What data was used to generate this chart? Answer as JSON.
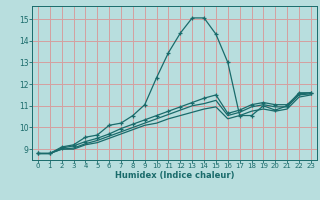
{
  "xlabel": "Humidex (Indice chaleur)",
  "xlim": [
    -0.5,
    23.5
  ],
  "ylim": [
    8.5,
    15.6
  ],
  "xticks": [
    0,
    1,
    2,
    3,
    4,
    5,
    6,
    7,
    8,
    9,
    10,
    11,
    12,
    13,
    14,
    15,
    16,
    17,
    18,
    19,
    20,
    21,
    22,
    23
  ],
  "yticks": [
    9,
    10,
    11,
    12,
    13,
    14,
    15
  ],
  "background_color": "#b8dede",
  "grid_color": "#d4a0a0",
  "line_color": "#1a6b6b",
  "line1_x": [
    0,
    1,
    2,
    3,
    4,
    5,
    6,
    7,
    8,
    9,
    10,
    11,
    12,
    13,
    14,
    15,
    16,
    17,
    18,
    19,
    20,
    21,
    22,
    23
  ],
  "line1_y": [
    8.8,
    8.8,
    9.1,
    9.2,
    9.55,
    9.65,
    10.1,
    10.2,
    10.55,
    11.05,
    12.3,
    13.45,
    14.35,
    15.05,
    15.05,
    14.3,
    13.0,
    10.55,
    10.55,
    11.0,
    10.8,
    11.0,
    11.6,
    11.6
  ],
  "line2_x": [
    0,
    1,
    2,
    3,
    4,
    5,
    6,
    7,
    8,
    9,
    10,
    11,
    12,
    13,
    14,
    15,
    16,
    17,
    18,
    19,
    20,
    21,
    22,
    23
  ],
  "line2_y": [
    8.8,
    8.8,
    9.05,
    9.15,
    9.35,
    9.5,
    9.7,
    9.95,
    10.15,
    10.35,
    10.55,
    10.75,
    10.95,
    11.15,
    11.35,
    11.5,
    10.65,
    10.8,
    11.05,
    11.15,
    11.05,
    11.05,
    11.55,
    11.6
  ],
  "line3_x": [
    0,
    1,
    2,
    3,
    4,
    5,
    6,
    7,
    8,
    9,
    10,
    11,
    12,
    13,
    14,
    15,
    16,
    17,
    18,
    19,
    20,
    21,
    22,
    23
  ],
  "line3_y": [
    8.8,
    8.8,
    9.0,
    9.05,
    9.25,
    9.4,
    9.6,
    9.8,
    10.0,
    10.2,
    10.4,
    10.6,
    10.8,
    11.0,
    11.1,
    11.25,
    10.55,
    10.7,
    10.95,
    11.05,
    10.95,
    10.95,
    11.5,
    11.55
  ],
  "line4_x": [
    0,
    1,
    2,
    3,
    4,
    5,
    6,
    7,
    8,
    9,
    10,
    11,
    12,
    13,
    14,
    15,
    16,
    17,
    18,
    19,
    20,
    21,
    22,
    23
  ],
  "line4_y": [
    8.8,
    8.8,
    9.0,
    9.0,
    9.2,
    9.3,
    9.5,
    9.7,
    9.9,
    10.1,
    10.2,
    10.4,
    10.55,
    10.7,
    10.85,
    10.95,
    10.4,
    10.55,
    10.75,
    10.85,
    10.75,
    10.85,
    11.4,
    11.5
  ]
}
